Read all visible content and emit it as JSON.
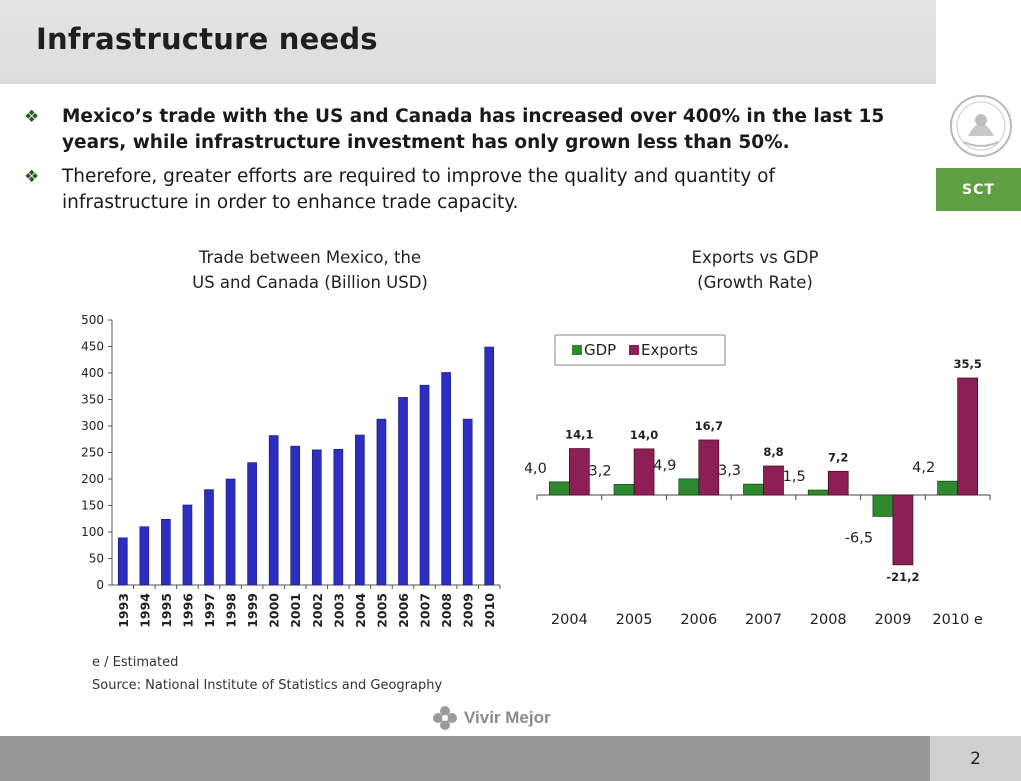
{
  "header": {
    "title": "Infrastructure needs"
  },
  "brand": {
    "agency": "SCT",
    "slogan": "Vivir Mejor",
    "page_number": "2"
  },
  "colors": {
    "accent_green": "#5f9f43",
    "bar_blue": "#2d2dc2",
    "gdp_green": "#2f8a2f",
    "exports_maroon": "#8c1f55"
  },
  "bullets": [
    {
      "text": "Mexico’s trade with the US and Canada has increased over 400% in the last 15 years, while infrastructure investment has only grown less than 50%.",
      "bold": true
    },
    {
      "text": "Therefore, greater efforts are required to improve the quality and quantity of infrastructure in order to enhance trade capacity.",
      "bold": false
    }
  ],
  "left_chart": {
    "title_line1": "Trade between Mexico, the",
    "title_line2": "US and Canada (Billion USD)"
  },
  "right_chart": {
    "title_line1": "Exports vs GDP",
    "title_line2": "(Growth Rate)"
  },
  "footnotes": {
    "estimated": "e / Estimated",
    "source": "Source: National Institute of Statistics and Geography"
  },
  "chart_data": [
    {
      "type": "bar",
      "title": "Trade between Mexico, the US and Canada (Billion USD)",
      "categories": [
        "1993",
        "1994",
        "1995",
        "1996",
        "1997",
        "1998",
        "1999",
        "2000",
        "2001",
        "2002",
        "2003",
        "2004",
        "2005",
        "2006",
        "2007",
        "2008",
        "2009",
        "2010"
      ],
      "values": [
        89,
        110,
        124,
        151,
        180,
        200,
        231,
        282,
        262,
        255,
        256,
        283,
        313,
        354,
        377,
        401,
        313,
        449
      ],
      "ylim": [
        0,
        500
      ],
      "yticks": [
        "0",
        "50",
        "100",
        "150",
        "200",
        "250",
        "300",
        "350",
        "400",
        "450",
        "500"
      ],
      "xlabel": "",
      "ylabel": "",
      "grid": false
    },
    {
      "type": "bar",
      "title": "Exports vs GDP (Growth Rate)",
      "categories": [
        "2004",
        "2005",
        "2006",
        "2007",
        "2008",
        "2009",
        "2010 e"
      ],
      "series": [
        {
          "name": "GDP",
          "values": [
            4.0,
            3.2,
            4.9,
            3.3,
            1.5,
            -6.5,
            4.2
          ],
          "labels": [
            "4,0",
            "3,2",
            "4,9",
            "3,3",
            "1,5",
            "-6,5",
            "4,2"
          ]
        },
        {
          "name": "Exports",
          "values": [
            14.1,
            14.0,
            16.7,
            8.8,
            7.2,
            -21.2,
            35.5
          ],
          "labels": [
            "14,1",
            "14,0",
            "16,7",
            "8,8",
            "7,2",
            "-21,2",
            "35,5"
          ]
        }
      ],
      "legend": "top-left",
      "grid": false
    }
  ]
}
